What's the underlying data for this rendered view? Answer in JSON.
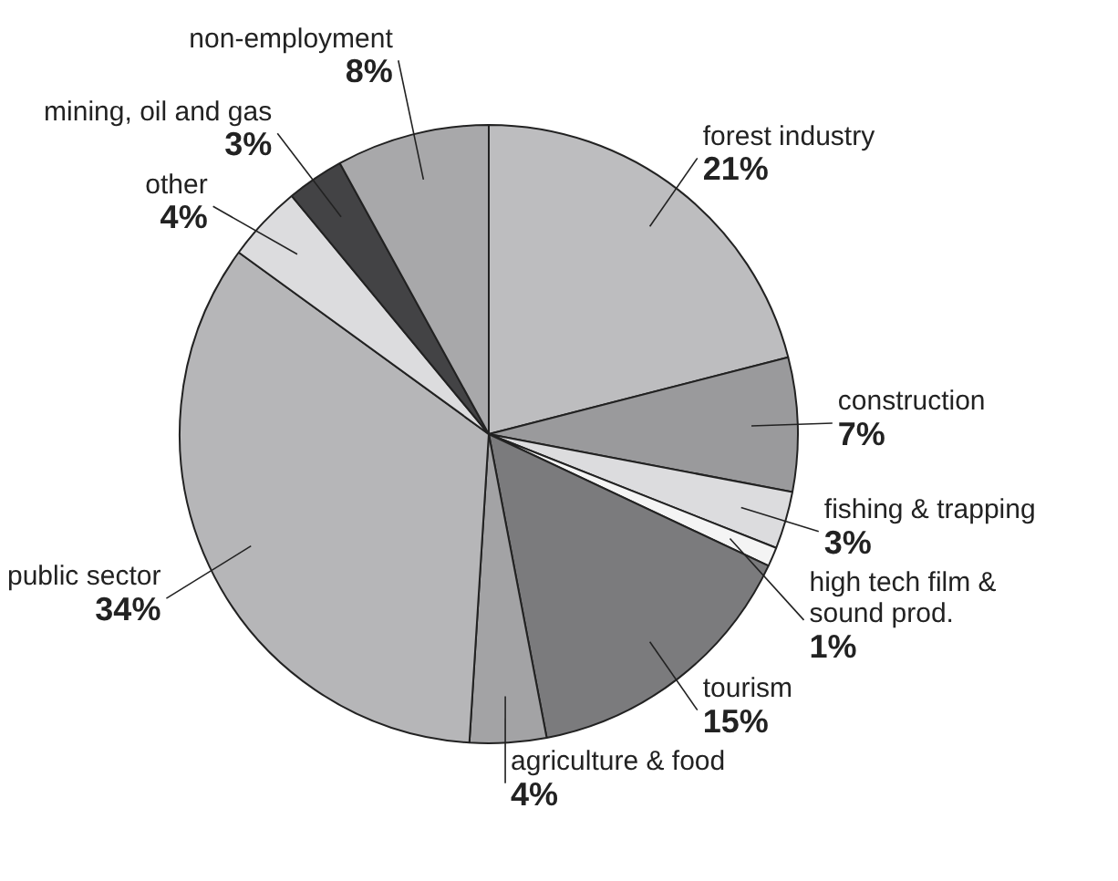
{
  "chart_data": {
    "type": "pie",
    "categories": [
      "forest industry",
      "construction",
      "fishing & trapping",
      "high tech film & sound prod.",
      "tourism",
      "agriculture & food",
      "public sector",
      "other",
      "mining, oil and gas",
      "non-employment"
    ],
    "values": [
      21,
      7,
      3,
      1,
      15,
      4,
      34,
      4,
      3,
      8
    ],
    "value_labels": [
      "21%",
      "7%",
      "3%",
      "1%",
      "15%",
      "4%",
      "34%",
      "4%",
      "3%",
      "8%"
    ],
    "colors": [
      "#bdbdbf",
      "#9a9a9c",
      "#dcdcde",
      "#f4f4f4",
      "#7b7b7d",
      "#a3a3a5",
      "#b6b6b8",
      "#dcdcde",
      "#434345",
      "#a8a8aa"
    ],
    "legend": false
  }
}
